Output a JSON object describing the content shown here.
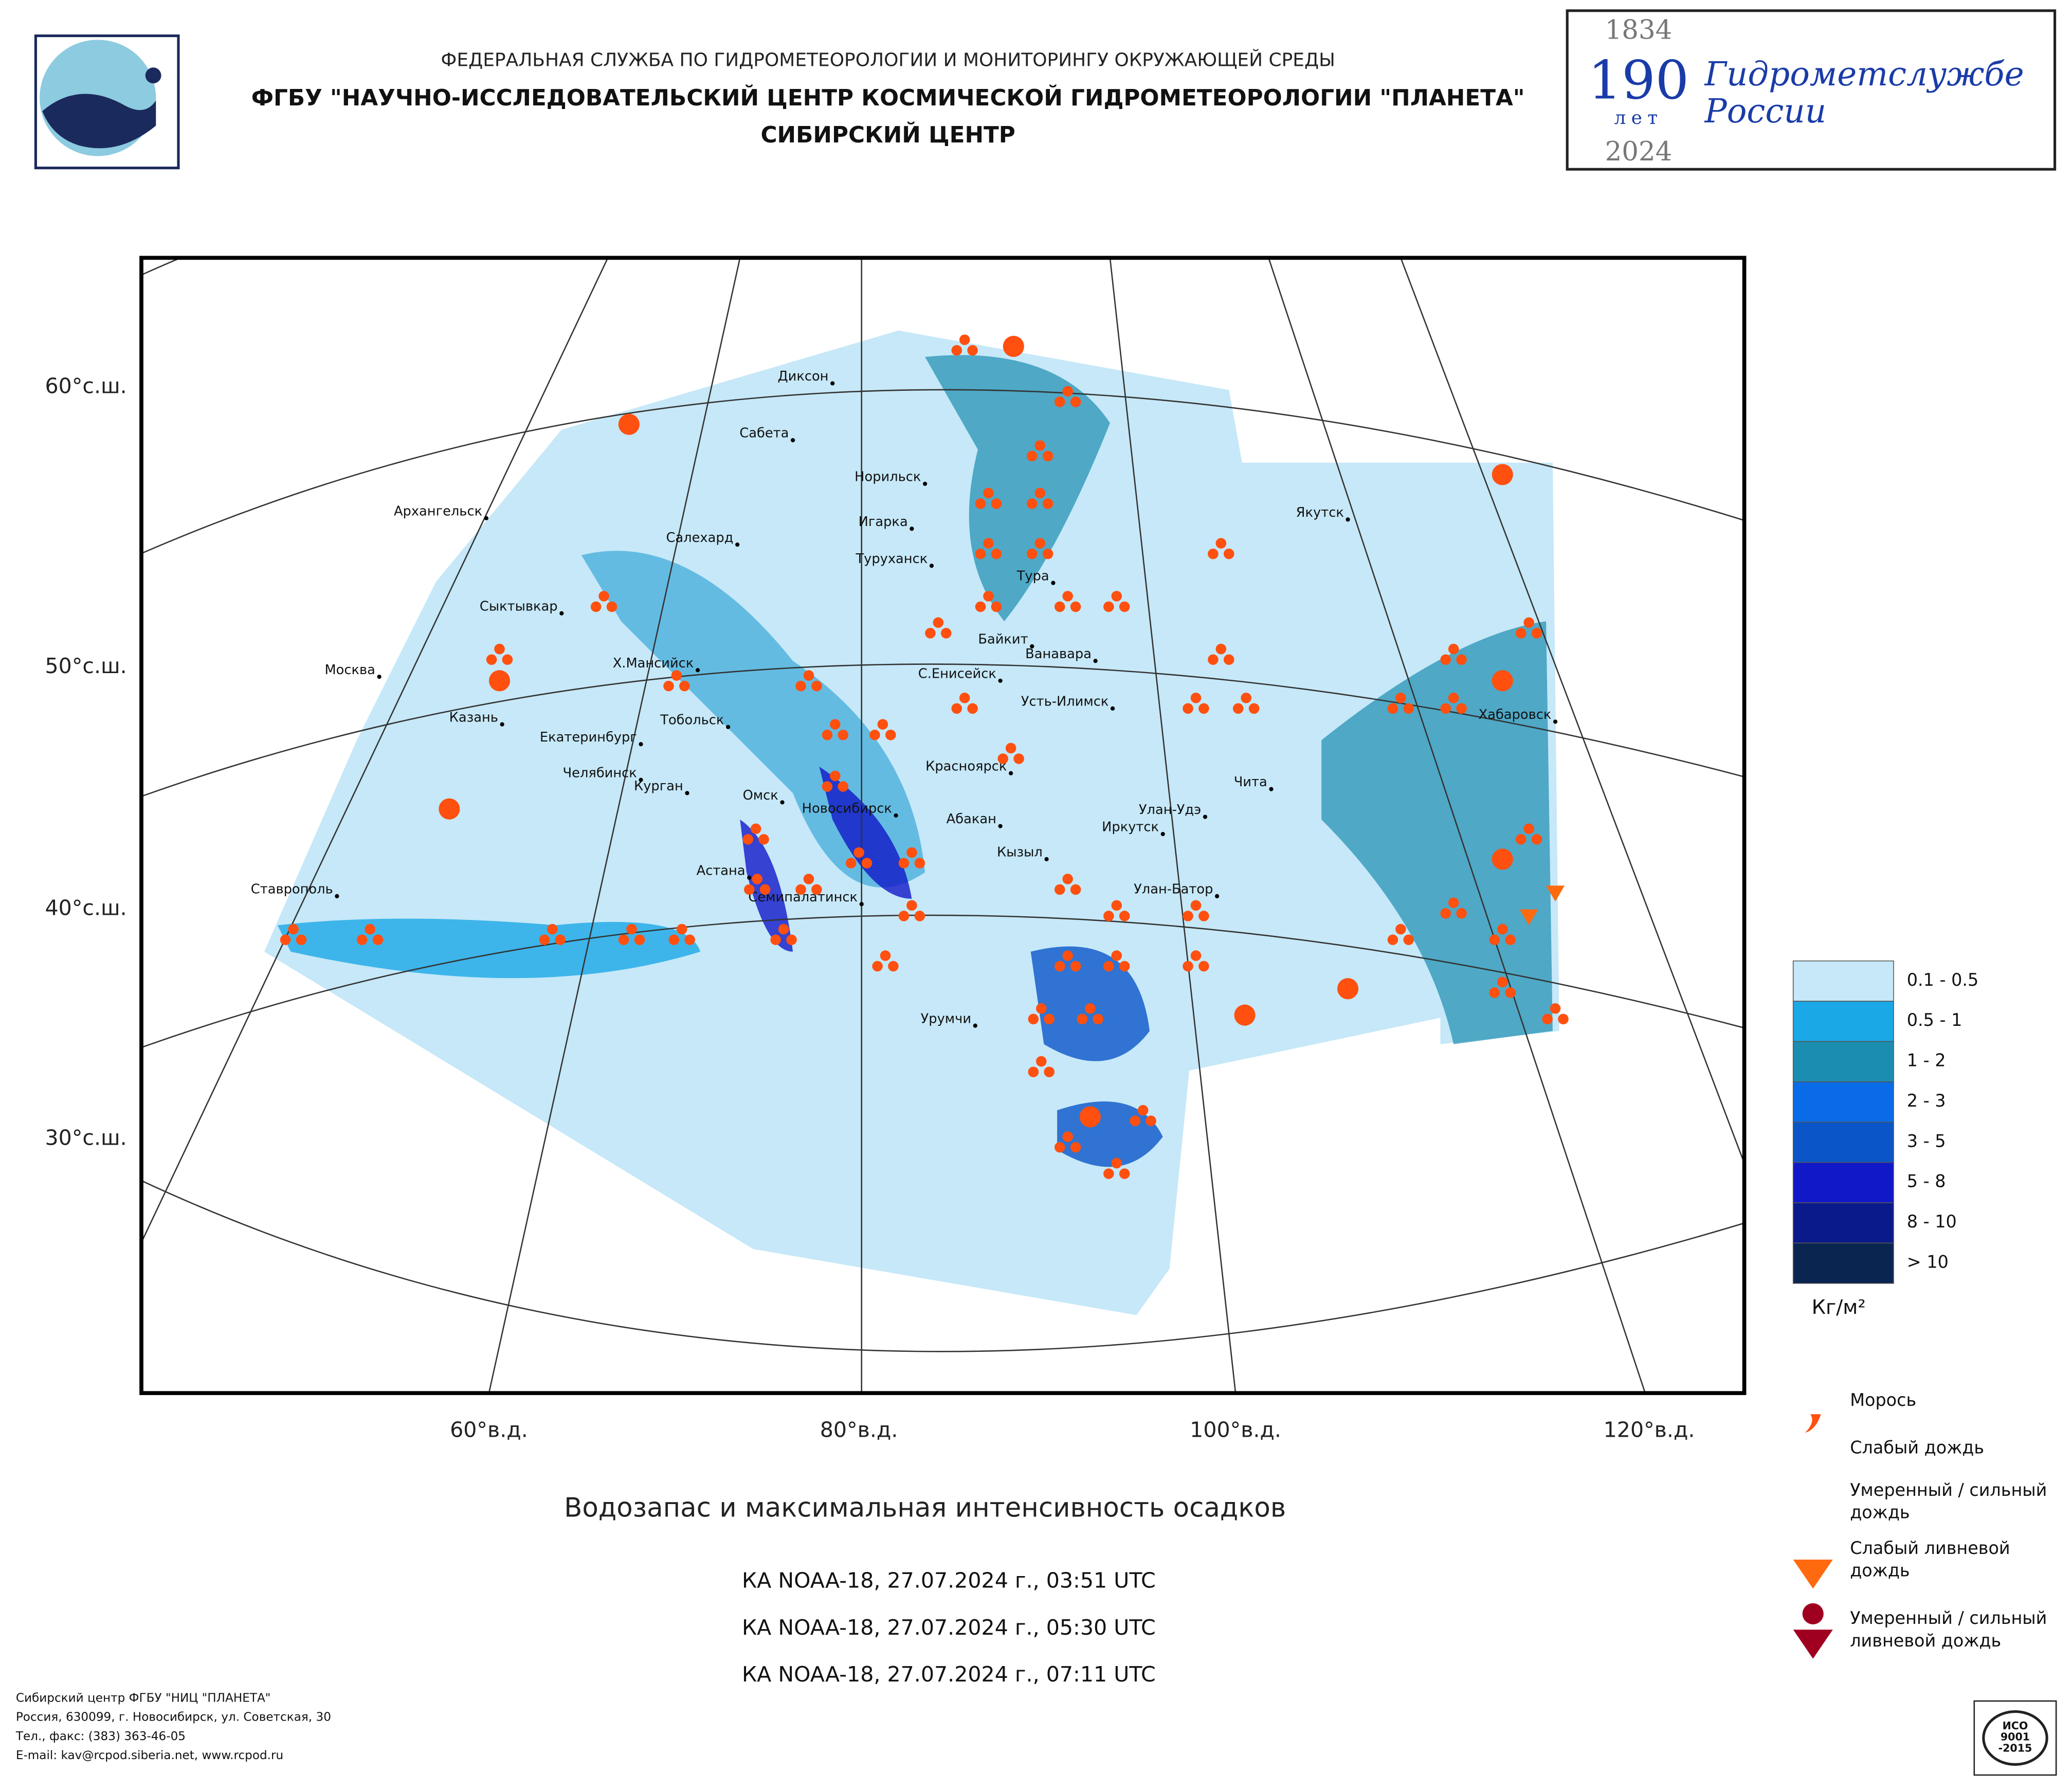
{
  "header": {
    "agency": "ФЕДЕРАЛЬНАЯ СЛУЖБА ПО ГИДРОМЕТЕОРОЛОГИИ И МОНИТОРИНГУ ОКРУЖАЮЩЕЙ СРЕДЫ",
    "institute": "ФГБУ \"НАУЧНО-ИССЛЕДОВАТЕЛЬСКИЙ ЦЕНТР КОСМИЧЕСКОЙ ГИДРОМЕТЕОРОЛОГИИ \"ПЛАНЕТА\"",
    "center": "СИБИРСКИЙ ЦЕНТР"
  },
  "anniversary": {
    "start": "1834",
    "number": "190",
    "unit": "лет",
    "end": "2024",
    "line1": "Гидрометслужбе",
    "line2": "России"
  },
  "map": {
    "lat_labels": [
      "60°с.ш.",
      "50°с.ш.",
      "40°с.ш.",
      "30°с.ш."
    ],
    "lon_labels": [
      "60°в.д.",
      "80°в.д.",
      "100°в.д.",
      "120°в.д."
    ],
    "cities": [
      "Диксон",
      "Сабета",
      "Норильск",
      "Архангельск",
      "Игарка",
      "Салехард",
      "Туруханск",
      "Якутск",
      "Тура",
      "Сыктывкар",
      "Байкит",
      "Ванавара",
      "Москва",
      "Х.Мансийск",
      "С.Енисейск",
      "Усть-Илимск",
      "Казань",
      "Тобольск",
      "Хабаровск",
      "Екатеринбург",
      "Челябинск",
      "Курган",
      "Красноярск",
      "Чита",
      "Омск",
      "Новосибирск",
      "Абакан",
      "Улан-Удэ",
      "Иркутск",
      "Кызыл",
      "Ставрополь",
      "Астана",
      "Семипалатинск",
      "Улан-Батор",
      "Урумчи"
    ]
  },
  "legend": {
    "items": [
      {
        "label": "0.1 - 0.5",
        "color": "#c6e8f8"
      },
      {
        "label": "0.5 - 1",
        "color": "#1aa8e6"
      },
      {
        "label": "1 - 2",
        "color": "#1b8db0"
      },
      {
        "label": "2 - 3",
        "color": "#0a6be8"
      },
      {
        "label": "3 - 5",
        "color": "#0a55c8"
      },
      {
        "label": "5 - 8",
        "color": "#1018c8"
      },
      {
        "label": "8 - 10",
        "color": "#0a1a8a"
      },
      {
        "label": "> 10",
        "color": "#0a2550"
      }
    ],
    "unit": "Кг/м²",
    "symbols": [
      [
        "Морось"
      ],
      [
        "Слабый дождь"
      ],
      [
        "Умеренный / сильный",
        "дождь"
      ],
      [
        "Слабый ливневой",
        "дождь"
      ],
      [
        "Умеренный / сильный",
        "ливневой дождь"
      ]
    ]
  },
  "title": "Водозапас и максимальная интенсивность осадков",
  "passes": [
    "КА NOAA-18, 27.07.2024 г., 03:51 UTC",
    "КА NOAA-18, 27.07.2024 г., 05:30 UTC",
    "КА NOAA-18, 27.07.2024 г., 07:11 UTC"
  ],
  "footer": [
    "Сибирский центр ФГБУ \"НИЦ \"ПЛАНЕТА\"",
    "Россия, 630099, г. Новосибирск, ул. Советская, 30",
    "Тел., факс: (383) 363-46-05",
    "E-mail: kav@rcpod.siberia.net, www.rcpod.ru"
  ],
  "badge": [
    "ИСО",
    "9001",
    "-2015"
  ]
}
